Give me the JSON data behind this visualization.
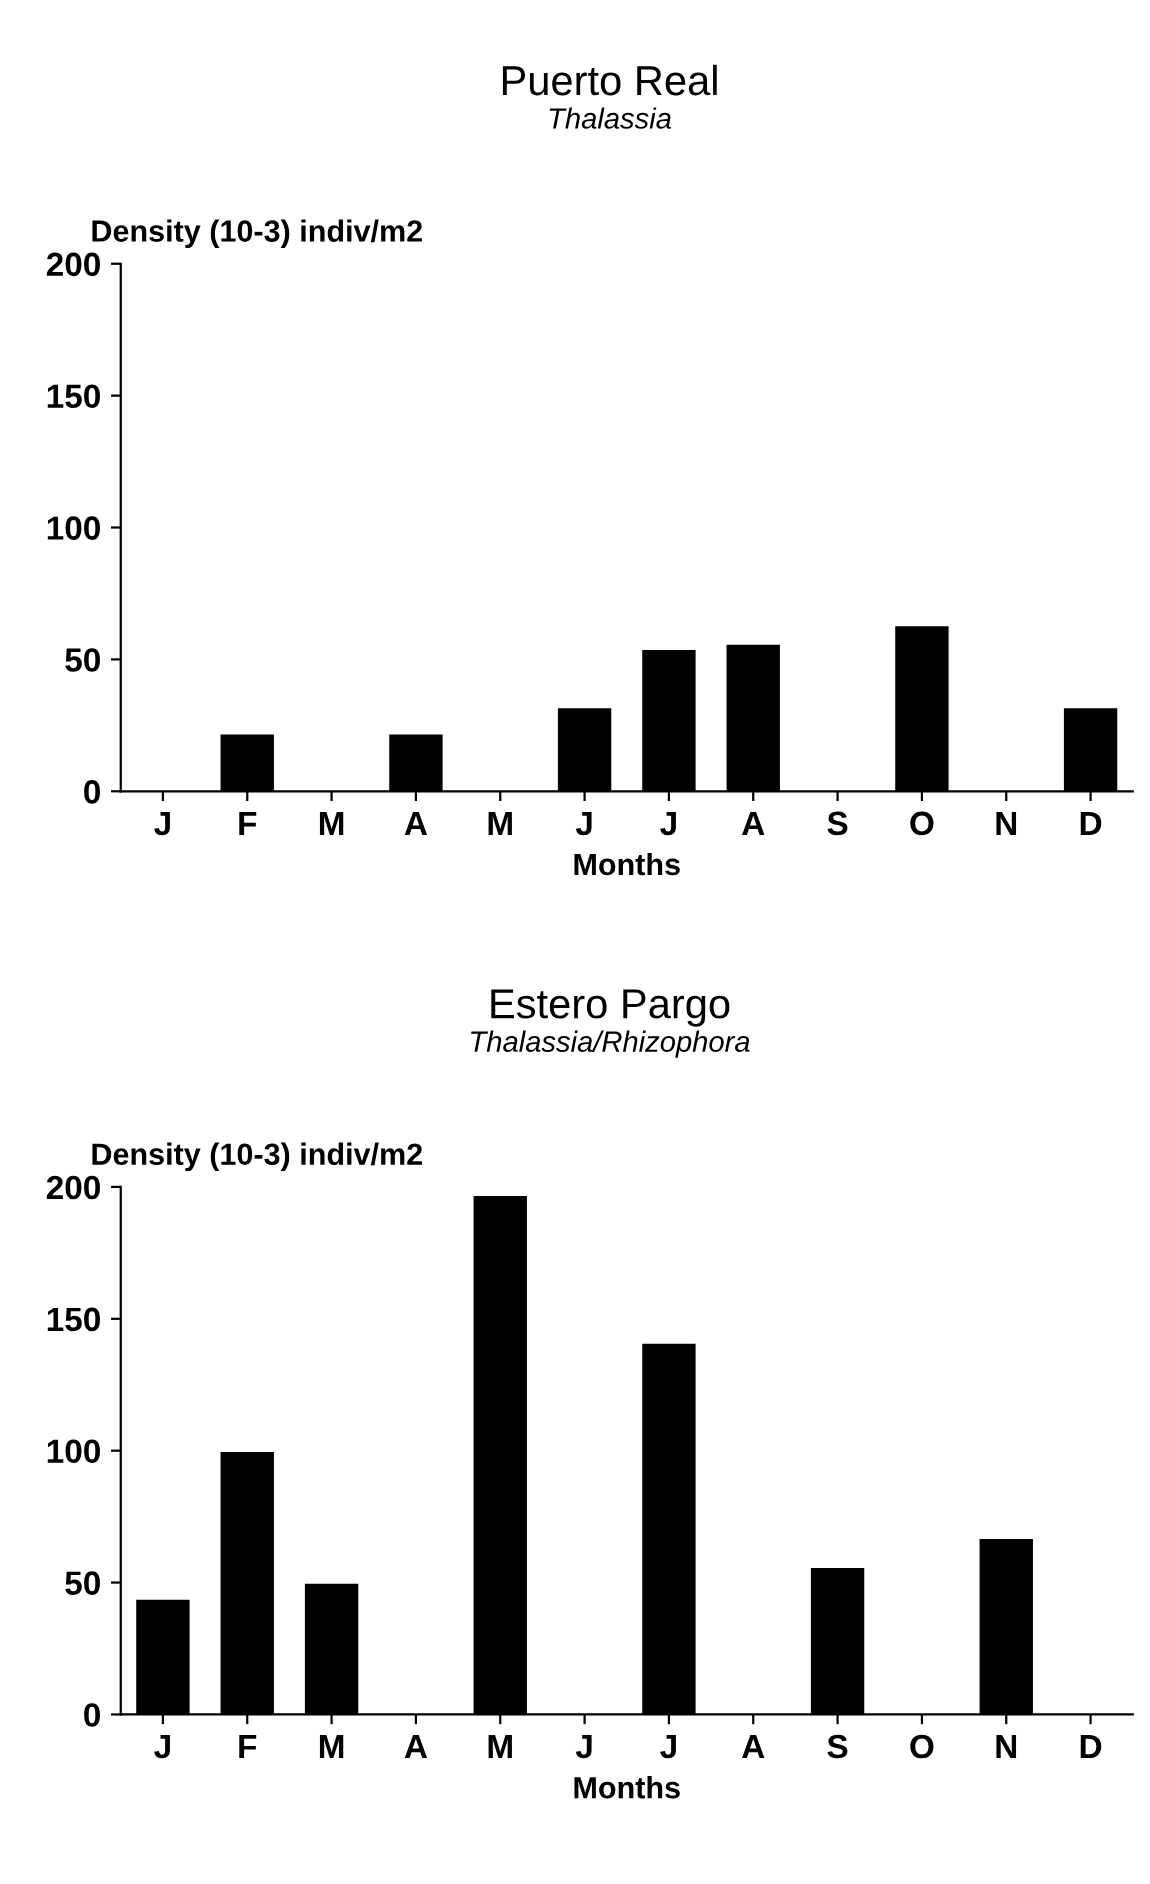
{
  "chart_data": [
    {
      "type": "bar",
      "title": "Puerto Real",
      "subtitle": "Thalassia",
      "ylabel": "Density (10-3) indiv/m2",
      "xlabel": "Months",
      "categories": [
        "J",
        "F",
        "M",
        "A",
        "M",
        "J",
        "J",
        "A",
        "S",
        "O",
        "N",
        "D"
      ],
      "values": [
        null,
        21,
        null,
        21,
        null,
        31,
        53,
        55,
        null,
        62,
        null,
        31
      ],
      "color": "#000000",
      "ylim": [
        0,
        200
      ],
      "yticks": [
        0,
        50,
        100,
        150,
        200
      ],
      "grid": false
    },
    {
      "type": "bar",
      "title": "Estero Pargo",
      "subtitle": "Thalassia/Rhizophora",
      "ylabel": "Density (10-3) indiv/m2",
      "xlabel": "Months",
      "categories": [
        "J",
        "F",
        "M",
        "A",
        "M",
        "J",
        "J",
        "A",
        "S",
        "O",
        "N",
        "D"
      ],
      "values": [
        43,
        99,
        49,
        null,
        196,
        null,
        140,
        null,
        55,
        null,
        66,
        null
      ],
      "color": "#000000",
      "ylim": [
        0,
        200
      ],
      "yticks": [
        0,
        50,
        100,
        150,
        200
      ],
      "grid": false
    }
  ]
}
